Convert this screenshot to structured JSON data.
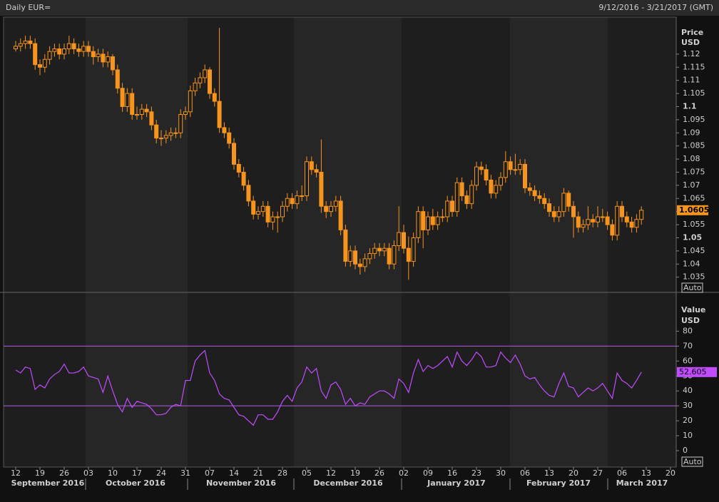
{
  "header": {
    "title": "Daily EUR=",
    "range": "9/12/2016 - 3/21/2017 (GMT)"
  },
  "chart_data": [
    {
      "type": "candlestick",
      "y_label": [
        "Price",
        "USD"
      ],
      "scale_mode": "Auto",
      "color": "#f7941d",
      "ylim": [
        1.0292,
        1.1341
      ],
      "yticks": [
        1.035,
        1.04,
        1.045,
        1.05,
        1.055,
        1.06,
        1.065,
        1.07,
        1.075,
        1.08,
        1.085,
        1.09,
        1.095,
        1.1,
        1.105,
        1.11,
        1.115,
        1.12
      ],
      "ohlc": [
        [
          1.122,
          1.125,
          1.121,
          1.123
        ],
        [
          1.123,
          1.126,
          1.121,
          1.124
        ],
        [
          1.124,
          1.127,
          1.122,
          1.125
        ],
        [
          1.125,
          1.127,
          1.122,
          1.124
        ],
        [
          1.124,
          1.126,
          1.114,
          1.116
        ],
        [
          1.116,
          1.118,
          1.112,
          1.115
        ],
        [
          1.115,
          1.12,
          1.113,
          1.118
        ],
        [
          1.118,
          1.123,
          1.116,
          1.121
        ],
        [
          1.121,
          1.124,
          1.119,
          1.122
        ],
        [
          1.122,
          1.124,
          1.118,
          1.12
        ],
        [
          1.12,
          1.124,
          1.118,
          1.122
        ],
        [
          1.122,
          1.127,
          1.12,
          1.124
        ],
        [
          1.124,
          1.126,
          1.12,
          1.122
        ],
        [
          1.122,
          1.124,
          1.119,
          1.121
        ],
        [
          1.121,
          1.125,
          1.119,
          1.123
        ],
        [
          1.123,
          1.125,
          1.119,
          1.121
        ],
        [
          1.121,
          1.123,
          1.116,
          1.119
        ],
        [
          1.119,
          1.122,
          1.117,
          1.12
        ],
        [
          1.12,
          1.122,
          1.115,
          1.117
        ],
        [
          1.117,
          1.121,
          1.115,
          1.119
        ],
        [
          1.119,
          1.12,
          1.112,
          1.114
        ],
        [
          1.114,
          1.116,
          1.105,
          1.107
        ],
        [
          1.107,
          1.109,
          1.098,
          1.1
        ],
        [
          1.1,
          1.107,
          1.098,
          1.105
        ],
        [
          1.105,
          1.107,
          1.095,
          1.097
        ],
        [
          1.097,
          1.1,
          1.095,
          1.097
        ],
        [
          1.097,
          1.101,
          1.095,
          1.099
        ],
        [
          1.099,
          1.101,
          1.096,
          1.098
        ],
        [
          1.098,
          1.1,
          1.091,
          1.093
        ],
        [
          1.093,
          1.095,
          1.086,
          1.088
        ],
        [
          1.088,
          1.091,
          1.085,
          1.088
        ],
        [
          1.088,
          1.091,
          1.086,
          1.089
        ],
        [
          1.089,
          1.092,
          1.087,
          1.09
        ],
        [
          1.09,
          1.092,
          1.088,
          1.09
        ],
        [
          1.09,
          1.099,
          1.088,
          1.097
        ],
        [
          1.097,
          1.1,
          1.095,
          1.098
        ],
        [
          1.098,
          1.108,
          1.096,
          1.106
        ],
        [
          1.106,
          1.111,
          1.104,
          1.109
        ],
        [
          1.109,
          1.113,
          1.107,
          1.111
        ],
        [
          1.111,
          1.116,
          1.109,
          1.114
        ],
        [
          1.114,
          1.115,
          1.103,
          1.105
        ],
        [
          1.105,
          1.107,
          1.1,
          1.102
        ],
        [
          1.102,
          1.13,
          1.09,
          1.092
        ],
        [
          1.092,
          1.094,
          1.088,
          1.09
        ],
        [
          1.09,
          1.092,
          1.084,
          1.086
        ],
        [
          1.086,
          1.088,
          1.076,
          1.078
        ],
        [
          1.078,
          1.08,
          1.073,
          1.075
        ],
        [
          1.075,
          1.077,
          1.068,
          1.07
        ],
        [
          1.07,
          1.072,
          1.062,
          1.064
        ],
        [
          1.064,
          1.066,
          1.057,
          1.059
        ],
        [
          1.059,
          1.062,
          1.057,
          1.06
        ],
        [
          1.06,
          1.064,
          1.058,
          1.062
        ],
        [
          1.062,
          1.064,
          1.054,
          1.056
        ],
        [
          1.056,
          1.06,
          1.053,
          1.058
        ],
        [
          1.058,
          1.06,
          1.052,
          1.058
        ],
        [
          1.058,
          1.064,
          1.056,
          1.062
        ],
        [
          1.062,
          1.067,
          1.06,
          1.065
        ],
        [
          1.065,
          1.067,
          1.061,
          1.063
        ],
        [
          1.063,
          1.068,
          1.061,
          1.066
        ],
        [
          1.066,
          1.07,
          1.064,
          1.066
        ],
        [
          1.066,
          1.081,
          1.064,
          1.079
        ],
        [
          1.079,
          1.081,
          1.074,
          1.076
        ],
        [
          1.076,
          1.078,
          1.073,
          1.075
        ],
        [
          1.075,
          1.0875,
          1.0595,
          1.062
        ],
        [
          1.062,
          1.064,
          1.0575,
          1.06
        ],
        [
          1.06,
          1.064,
          1.058,
          1.062
        ],
        [
          1.062,
          1.066,
          1.06,
          1.064
        ],
        [
          1.064,
          1.066,
          1.051,
          1.053
        ],
        [
          1.053,
          1.055,
          1.039,
          1.041
        ],
        [
          1.041,
          1.047,
          1.039,
          1.045
        ],
        [
          1.045,
          1.047,
          1.038,
          1.04
        ],
        [
          1.04,
          1.042,
          1.036,
          1.039
        ],
        [
          1.039,
          1.044,
          1.037,
          1.042
        ],
        [
          1.042,
          1.046,
          1.04,
          1.044
        ],
        [
          1.044,
          1.048,
          1.042,
          1.046
        ],
        [
          1.046,
          1.048,
          1.043,
          1.045
        ],
        [
          1.045,
          1.048,
          1.043,
          1.046
        ],
        [
          1.046,
          1.048,
          1.038,
          1.04
        ],
        [
          1.04,
          1.049,
          1.038,
          1.047
        ],
        [
          1.047,
          1.062,
          1.045,
          1.052
        ],
        [
          1.052,
          1.055,
          1.044,
          1.046
        ],
        [
          1.046,
          1.0505,
          1.034,
          1.041
        ],
        [
          1.041,
          1.052,
          1.039,
          1.05
        ],
        [
          1.05,
          1.062,
          1.048,
          1.06
        ],
        [
          1.06,
          1.062,
          1.046,
          1.053
        ],
        [
          1.053,
          1.06,
          1.051,
          1.058
        ],
        [
          1.058,
          1.061,
          1.053,
          1.055
        ],
        [
          1.055,
          1.06,
          1.053,
          1.058
        ],
        [
          1.058,
          1.061,
          1.056,
          1.058
        ],
        [
          1.058,
          1.066,
          1.056,
          1.064
        ],
        [
          1.064,
          1.066,
          1.058,
          1.06
        ],
        [
          1.06,
          1.073,
          1.058,
          1.071
        ],
        [
          1.071,
          1.073,
          1.064,
          1.066
        ],
        [
          1.066,
          1.068,
          1.061,
          1.063
        ],
        [
          1.063,
          1.072,
          1.061,
          1.07
        ],
        [
          1.07,
          1.079,
          1.068,
          1.077
        ],
        [
          1.077,
          1.079,
          1.074,
          1.076
        ],
        [
          1.076,
          1.078,
          1.07,
          1.072
        ],
        [
          1.072,
          1.074,
          1.065,
          1.067
        ],
        [
          1.067,
          1.072,
          1.065,
          1.07
        ],
        [
          1.07,
          1.075,
          1.068,
          1.073
        ],
        [
          1.073,
          1.083,
          1.071,
          1.079
        ],
        [
          1.079,
          1.081,
          1.074,
          1.076
        ],
        [
          1.076,
          1.082,
          1.074,
          1.076
        ],
        [
          1.076,
          1.08,
          1.074,
          1.078
        ],
        [
          1.078,
          1.08,
          1.067,
          1.069
        ],
        [
          1.069,
          1.071,
          1.066,
          1.068
        ],
        [
          1.068,
          1.07,
          1.064,
          1.066
        ],
        [
          1.066,
          1.068,
          1.063,
          1.065
        ],
        [
          1.065,
          1.067,
          1.061,
          1.063
        ],
        [
          1.063,
          1.065,
          1.058,
          1.06
        ],
        [
          1.06,
          1.062,
          1.056,
          1.058
        ],
        [
          1.058,
          1.062,
          1.056,
          1.06
        ],
        [
          1.06,
          1.069,
          1.058,
          1.067
        ],
        [
          1.067,
          1.068,
          1.06,
          1.062
        ],
        [
          1.062,
          1.064,
          1.05,
          1.058
        ],
        [
          1.058,
          1.06,
          1.052,
          1.054
        ],
        [
          1.054,
          1.057,
          1.052,
          1.055
        ],
        [
          1.055,
          1.062,
          1.053,
          1.057
        ],
        [
          1.057,
          1.059,
          1.054,
          1.056
        ],
        [
          1.056,
          1.062,
          1.054,
          1.058
        ],
        [
          1.058,
          1.061,
          1.056,
          1.058
        ],
        [
          1.058,
          1.06,
          1.053,
          1.055
        ],
        [
          1.055,
          1.057,
          1.049,
          1.051
        ],
        [
          1.051,
          1.064,
          1.049,
          1.062
        ],
        [
          1.062,
          1.064,
          1.056,
          1.058
        ],
        [
          1.058,
          1.06,
          1.054,
          1.056
        ],
        [
          1.056,
          1.058,
          1.052,
          1.054
        ],
        [
          1.054,
          1.059,
          1.052,
          1.057
        ],
        [
          1.057,
          1.062,
          1.055,
          1.0605
        ]
      ]
    },
    {
      "type": "line",
      "y_label": [
        "Value",
        "USD"
      ],
      "scale_mode": "Auto",
      "color": "#c14cff",
      "level_color": "#b45ee6",
      "ylim": [
        -11,
        106
      ],
      "yticks": [
        0,
        10,
        20,
        30,
        40,
        50,
        60,
        70,
        80
      ],
      "levels": [
        30,
        70
      ],
      "values": [
        54,
        52,
        56,
        55,
        41,
        44,
        42,
        48,
        51,
        53,
        58,
        52,
        52,
        53,
        56,
        50,
        49,
        48,
        39,
        50,
        40,
        31,
        26,
        35,
        29,
        33,
        32,
        31,
        28,
        24,
        24,
        25,
        29,
        31,
        30,
        47,
        47,
        60,
        64,
        67,
        52,
        47,
        38,
        35,
        34,
        29,
        24,
        23,
        20,
        17,
        24,
        24,
        21,
        21,
        26,
        33,
        37,
        33,
        42,
        46,
        56,
        52,
        55,
        40,
        35,
        44,
        46,
        41,
        31,
        35,
        30,
        32,
        31,
        36,
        38,
        40,
        40,
        38,
        35,
        48,
        45,
        39,
        52,
        61,
        53,
        57,
        55,
        57,
        60,
        63,
        56,
        66,
        60,
        57,
        61,
        66,
        63,
        56,
        56,
        57,
        66,
        62,
        59,
        64,
        58,
        50,
        48,
        49,
        44,
        40,
        37,
        36,
        45,
        52,
        43,
        42,
        36,
        39,
        42,
        40,
        42,
        45,
        40,
        35,
        52,
        47,
        45,
        42,
        47,
        52.605
      ],
      "xticks": [
        {
          "value": 0,
          "label": "12"
        },
        {
          "value": 5,
          "label": "19"
        },
        {
          "value": 10,
          "label": "26"
        },
        {
          "value": 15,
          "label": "03"
        },
        {
          "value": 20,
          "label": "10"
        },
        {
          "value": 25,
          "label": "17"
        },
        {
          "value": 30,
          "label": "24"
        },
        {
          "value": 35,
          "label": "31"
        },
        {
          "value": 40,
          "label": "07"
        },
        {
          "value": 45,
          "label": "14"
        },
        {
          "value": 50,
          "label": "21"
        },
        {
          "value": 55,
          "label": "28"
        },
        {
          "value": 60,
          "label": "05"
        },
        {
          "value": 65,
          "label": "12"
        },
        {
          "value": 70,
          "label": "19"
        },
        {
          "value": 75,
          "label": "26"
        },
        {
          "value": 80,
          "label": "02"
        },
        {
          "value": 85,
          "label": "09"
        },
        {
          "value": 90,
          "label": "16"
        },
        {
          "value": 95,
          "label": "23"
        },
        {
          "value": 100,
          "label": "30"
        },
        {
          "value": 105,
          "label": "06"
        },
        {
          "value": 110,
          "label": "13"
        },
        {
          "value": 115,
          "label": "20"
        },
        {
          "value": 120,
          "label": "27"
        },
        {
          "value": 125,
          "label": "06"
        },
        {
          "value": 130,
          "label": "13"
        },
        {
          "value": 135,
          "label": "20"
        }
      ],
      "months": [
        "September 2016",
        "October 2016",
        "November 2016",
        "December 2016",
        "January 2017",
        "February 2017",
        "March 2017"
      ]
    }
  ]
}
